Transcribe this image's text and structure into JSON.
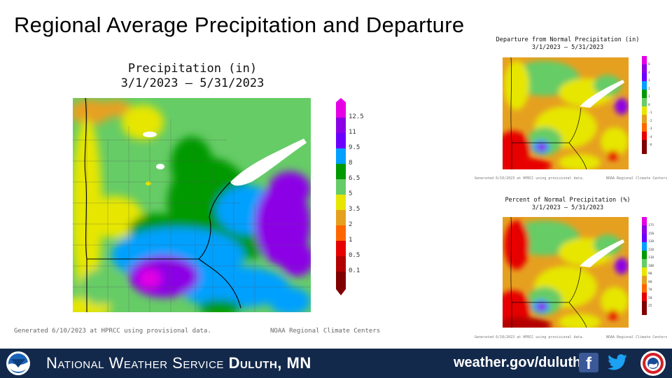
{
  "slide": {
    "title": "Regional Average Precipitation and Departure"
  },
  "main_map": {
    "title_line1": "Precipitation (in)",
    "title_line2": "3/1/2023 – 5/31/2023",
    "legend": {
      "labels": [
        "12.5",
        "11",
        "9.5",
        "8",
        "6.5",
        "5",
        "3.5",
        "2",
        "1",
        "0.5",
        "0.1"
      ],
      "colors": [
        "#e600e6",
        "#8c00e6",
        "#6b00ff",
        "#00a0ff",
        "#009900",
        "#66cc66",
        "#e6e600",
        "#e6a020",
        "#ff6600",
        "#e60000",
        "#b30000",
        "#800000"
      ]
    },
    "credit_left": "Generated 6/10/2023 at HPRCC using provisional data.",
    "credit_right": "NOAA Regional Climate Centers"
  },
  "departure_map": {
    "title_line1": "Departure from Normal Precipitation (in)",
    "title_line2": "3/1/2023 – 5/31/2023",
    "legend_labels": [
      "6",
      "4",
      "3",
      "2",
      "1",
      "0",
      "-1",
      "-2",
      "-3",
      "-4",
      "-6"
    ],
    "credit_left": "Generated 6/10/2023 at HPRCC using provisional data.",
    "credit_right": "NOAA Regional Climate Centers"
  },
  "percent_map": {
    "title_line1": "Percent of Normal Precipitation (%)",
    "title_line2": "3/1/2023 – 5/31/2023",
    "legend_labels": [
      "175",
      "150",
      "130",
      "120",
      "110",
      "100",
      "90",
      "80",
      "70",
      "50",
      "25"
    ],
    "credit_left": "Generated 6/10/2023 at HPRCC using provisional data.",
    "credit_right": "NOAA Regional Climate Centers"
  },
  "footer": {
    "org_prefix": "National Weather Service",
    "org_office": "Duluth, MN",
    "url": "weather.gov/duluth",
    "facebook_icon": "facebook-icon",
    "twitter_icon": "twitter-icon",
    "noaa_logo": "NOAA",
    "nws_logo": "NWS"
  }
}
